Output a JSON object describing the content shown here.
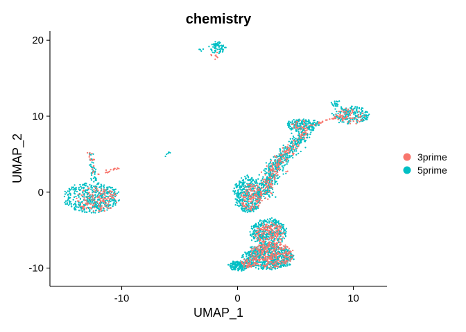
{
  "chart_data": {
    "type": "scatter",
    "title": "chemistry",
    "xlabel": "UMAP_1",
    "ylabel": "UMAP_2",
    "xlim": [
      -16.2,
      12.9
    ],
    "ylim": [
      -12.4,
      21.2
    ],
    "xticks": [
      -10,
      0,
      10
    ],
    "xtick_labels": [
      "-10",
      "0",
      "10"
    ],
    "yticks": [
      -10,
      0,
      10,
      20
    ],
    "ytick_labels": [
      "-10",
      "0",
      "10",
      "20"
    ],
    "grid": false,
    "legend_position": "right",
    "series": [
      {
        "name": "3prime",
        "color": "#F8766D"
      },
      {
        "name": "5prime",
        "color": "#00BFC4"
      }
    ],
    "point_groups": [
      {
        "series": "5prime",
        "shape": "ellipse",
        "cx": -12.6,
        "cy": -0.7,
        "rx": 2.4,
        "ry": 2.0,
        "n": 420
      },
      {
        "series": "3prime",
        "shape": "ellipse",
        "cx": -12.2,
        "cy": -1.0,
        "rx": 1.8,
        "ry": 1.6,
        "n": 150
      },
      {
        "series": "5prime",
        "shape": "segment",
        "x1": -12.7,
        "y1": 5.1,
        "x2": -12.3,
        "y2": 1.4,
        "w": 0.3,
        "n": 40
      },
      {
        "series": "3prime",
        "shape": "segment",
        "x1": -12.7,
        "y1": 5.2,
        "x2": -12.4,
        "y2": 2.0,
        "w": 0.3,
        "n": 20
      },
      {
        "series": "3prime",
        "shape": "segment",
        "x1": -12.0,
        "y1": 2.3,
        "x2": -10.0,
        "y2": 3.3,
        "w": 0.15,
        "n": 16
      },
      {
        "series": "5prime",
        "shape": "segment",
        "x1": -6.3,
        "y1": 4.7,
        "x2": -5.9,
        "y2": 5.3,
        "w": 0.1,
        "n": 6
      },
      {
        "series": "5prime",
        "shape": "ellipse",
        "cx": -1.7,
        "cy": 19.0,
        "rx": 0.6,
        "ry": 0.7,
        "n": 70
      },
      {
        "series": "5prime",
        "shape": "ellipse",
        "cx": -3.2,
        "cy": 18.7,
        "rx": 0.15,
        "ry": 0.1,
        "n": 4
      },
      {
        "series": "3prime",
        "shape": "ellipse",
        "cx": -2.0,
        "cy": 18.0,
        "rx": 0.3,
        "ry": 0.5,
        "n": 8
      },
      {
        "series": "5prime",
        "shape": "ellipse",
        "cx": 9.8,
        "cy": 10.2,
        "rx": 1.6,
        "ry": 1.1,
        "n": 180
      },
      {
        "series": "3prime",
        "shape": "ellipse",
        "cx": 9.7,
        "cy": 10.0,
        "rx": 1.3,
        "ry": 1.0,
        "n": 70
      },
      {
        "series": "5prime",
        "shape": "ellipse",
        "cx": 8.5,
        "cy": 11.6,
        "rx": 0.4,
        "ry": 0.5,
        "n": 20
      },
      {
        "series": "5prime",
        "shape": "ellipse",
        "cx": 5.6,
        "cy": 8.9,
        "rx": 1.4,
        "ry": 0.8,
        "n": 160
      },
      {
        "series": "3prime",
        "shape": "ellipse",
        "cx": 5.6,
        "cy": 8.8,
        "rx": 1.1,
        "ry": 0.6,
        "n": 40
      },
      {
        "series": "3prime",
        "shape": "segment",
        "x1": 6.8,
        "y1": 9.0,
        "x2": 8.4,
        "y2": 9.8,
        "w": 0.2,
        "n": 20
      },
      {
        "series": "5prime",
        "shape": "segment",
        "x1": 5.8,
        "y1": 7.8,
        "x2": 3.3,
        "y2": 3.5,
        "w": 0.7,
        "n": 260
      },
      {
        "series": "3prime",
        "shape": "segment",
        "x1": 5.8,
        "y1": 7.8,
        "x2": 3.3,
        "y2": 3.5,
        "w": 0.6,
        "n": 110
      },
      {
        "series": "5prime",
        "shape": "segment",
        "x1": 3.3,
        "y1": 3.6,
        "x2": 2.2,
        "y2": -0.5,
        "w": 0.8,
        "n": 230
      },
      {
        "series": "3prime",
        "shape": "segment",
        "x1": 3.3,
        "y1": 3.6,
        "x2": 2.2,
        "y2": -0.5,
        "w": 0.7,
        "n": 110
      },
      {
        "series": "5prime",
        "shape": "ellipse",
        "cx": 0.9,
        "cy": -0.3,
        "rx": 1.2,
        "ry": 2.4,
        "n": 360
      },
      {
        "series": "3prime",
        "shape": "ellipse",
        "cx": 1.2,
        "cy": -0.6,
        "rx": 0.9,
        "ry": 1.9,
        "n": 140
      },
      {
        "series": "5prime",
        "shape": "ellipse",
        "cx": 2.7,
        "cy": -5.3,
        "rx": 1.6,
        "ry": 1.8,
        "n": 340
      },
      {
        "series": "3prime",
        "shape": "ellipse",
        "cx": 2.8,
        "cy": -5.5,
        "rx": 1.3,
        "ry": 1.5,
        "n": 180
      },
      {
        "series": "5prime",
        "shape": "ellipse",
        "cx": 2.6,
        "cy": -8.6,
        "rx": 2.2,
        "ry": 1.6,
        "n": 560
      },
      {
        "series": "3prime",
        "shape": "ellipse",
        "cx": 2.9,
        "cy": -8.3,
        "rx": 1.9,
        "ry": 1.6,
        "n": 330
      },
      {
        "series": "5prime",
        "shape": "ellipse",
        "cx": 0.1,
        "cy": -9.7,
        "rx": 0.8,
        "ry": 0.6,
        "n": 160
      },
      {
        "series": "3prime",
        "shape": "ellipse",
        "cx": 0.9,
        "cy": -9.4,
        "rx": 0.7,
        "ry": 0.6,
        "n": 60
      }
    ]
  }
}
